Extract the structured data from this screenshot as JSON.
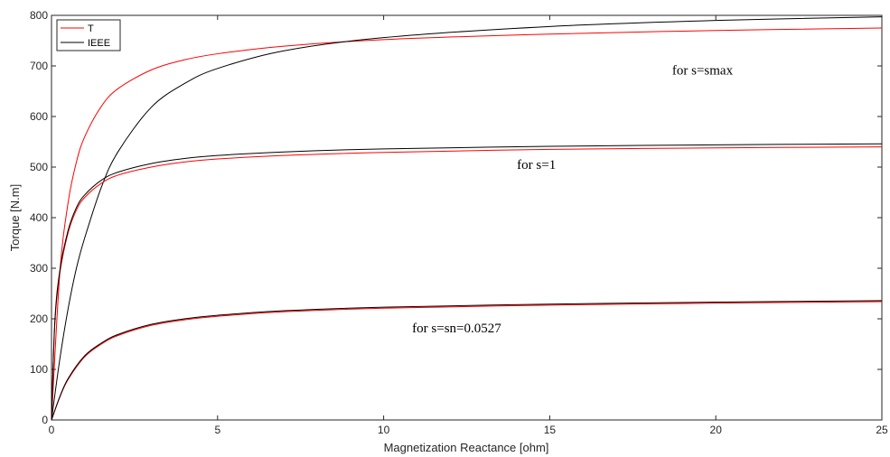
{
  "chart_data": {
    "type": "line",
    "xlabel": "Magnetization Reactance [ohm]",
    "ylabel": "Torque [N.m]",
    "xlim": [
      0,
      25
    ],
    "ylim": [
      0,
      800
    ],
    "xticks": [
      0,
      5,
      10,
      15,
      20,
      25
    ],
    "yticks": [
      0,
      100,
      200,
      300,
      400,
      500,
      600,
      700,
      800
    ],
    "grid": false,
    "legend_position": "top-left",
    "legend": [
      {
        "name": "T",
        "color": "#ff0000"
      },
      {
        "name": "IEEE",
        "color": "#000000"
      }
    ],
    "annotations": [
      {
        "text": "for s=smax",
        "x": 19.6,
        "y": 683
      },
      {
        "text": "for s=1",
        "x": 14.6,
        "y": 496
      },
      {
        "text": "for s=sn=0.0527",
        "x": 12.2,
        "y": 173
      }
    ],
    "series": [
      {
        "name": "T",
        "group": "for s=smax",
        "color": "#ff0000",
        "x": [
          0,
          0.25,
          0.5,
          0.75,
          1,
          1.5,
          2,
          3,
          4,
          5,
          7,
          10,
          15,
          20,
          25
        ],
        "y": [
          0,
          290,
          430,
          510,
          560,
          620,
          655,
          692,
          712,
          724,
          739,
          752,
          763,
          770,
          775
        ]
      },
      {
        "name": "IEEE",
        "group": "for s=smax",
        "color": "#000000",
        "x": [
          0,
          0.25,
          0.5,
          0.75,
          1,
          1.5,
          2,
          3,
          4,
          5,
          7,
          10,
          15,
          20,
          25
        ],
        "y": [
          0,
          120,
          220,
          300,
          360,
          460,
          530,
          618,
          665,
          695,
          730,
          756,
          778,
          790,
          797
        ]
      },
      {
        "name": "T",
        "group": "for s=1",
        "color": "#ff0000",
        "x": [
          0,
          0.1,
          0.25,
          0.5,
          0.75,
          1,
          1.5,
          2,
          3,
          4,
          5,
          7,
          10,
          15,
          20,
          25
        ],
        "y": [
          0,
          190,
          290,
          370,
          415,
          440,
          468,
          484,
          500,
          510,
          516,
          523,
          529,
          535,
          538,
          540
        ]
      },
      {
        "name": "IEEE",
        "group": "for s=1",
        "color": "#000000",
        "x": [
          0,
          0.1,
          0.25,
          0.5,
          0.75,
          1,
          1.5,
          2,
          3,
          4,
          5,
          7,
          10,
          15,
          20,
          25
        ],
        "y": [
          0,
          195,
          295,
          375,
          420,
          445,
          474,
          490,
          507,
          517,
          523,
          530,
          536,
          541,
          544,
          546
        ]
      },
      {
        "name": "T",
        "group": "for s=sn=0.0527",
        "color": "#ff0000",
        "x": [
          0,
          0.25,
          0.5,
          1,
          1.5,
          2,
          3,
          4,
          5,
          7,
          10,
          15,
          20,
          25
        ],
        "y": [
          0,
          45,
          80,
          125,
          150,
          167,
          187,
          198,
          205,
          214,
          221,
          227,
          231,
          234
        ]
      },
      {
        "name": "IEEE",
        "group": "for s=sn=0.0527",
        "color": "#000000",
        "x": [
          0,
          0.25,
          0.5,
          1,
          1.5,
          2,
          3,
          4,
          5,
          7,
          10,
          15,
          20,
          25
        ],
        "y": [
          0,
          46,
          82,
          127,
          152,
          169,
          189,
          200,
          207,
          216,
          223,
          229,
          233,
          236
        ]
      }
    ]
  }
}
